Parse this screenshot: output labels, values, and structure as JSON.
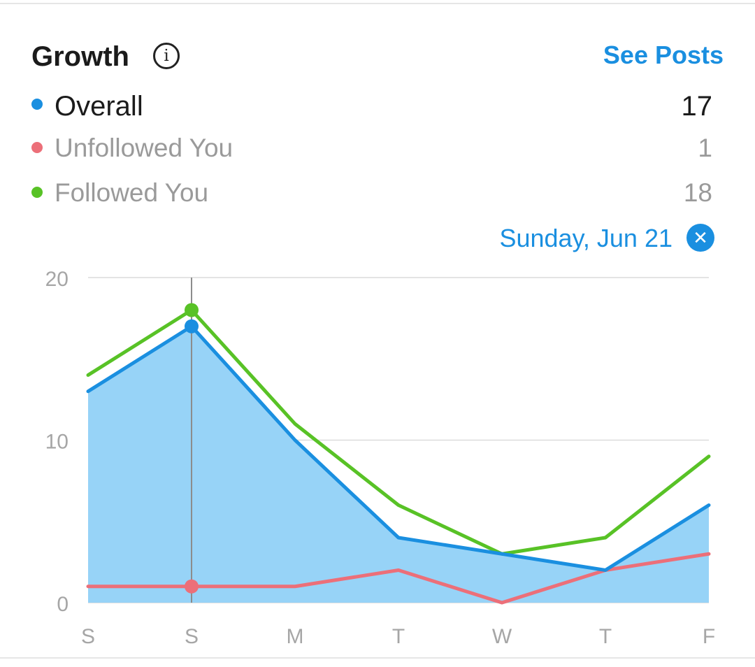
{
  "header": {
    "title": "Growth",
    "info_icon": "info-icon",
    "see_posts_label": "See Posts"
  },
  "legend": [
    {
      "label": "Overall",
      "value": "17",
      "color": "#1a8fe0"
    },
    {
      "label": "Unfollowed You",
      "value": "1",
      "color": "#ec6f79"
    },
    {
      "label": "Followed You",
      "value": "18",
      "color": "#58c226"
    }
  ],
  "selection": {
    "date_label": "Sunday, Jun 21",
    "clear_icon": "close-icon",
    "selected_index": 1
  },
  "chart_data": {
    "type": "area",
    "title": "",
    "xlabel": "",
    "ylabel": "",
    "categories": [
      "S",
      "S",
      "M",
      "T",
      "W",
      "T",
      "F"
    ],
    "ylim": [
      0,
      20
    ],
    "yticks": [
      0,
      10,
      20
    ],
    "grid": true,
    "series": [
      {
        "name": "Overall",
        "color": "#1a8fe0",
        "fill": "#97d3f7",
        "values": [
          13,
          17,
          10,
          4,
          3,
          2,
          6
        ]
      },
      {
        "name": "Unfollowed You",
        "color": "#ec6f79",
        "values": [
          1,
          1,
          1,
          2,
          0,
          2,
          3
        ]
      },
      {
        "name": "Followed You",
        "color": "#58c226",
        "values": [
          14,
          18,
          11,
          6,
          3,
          4,
          9
        ]
      }
    ]
  }
}
